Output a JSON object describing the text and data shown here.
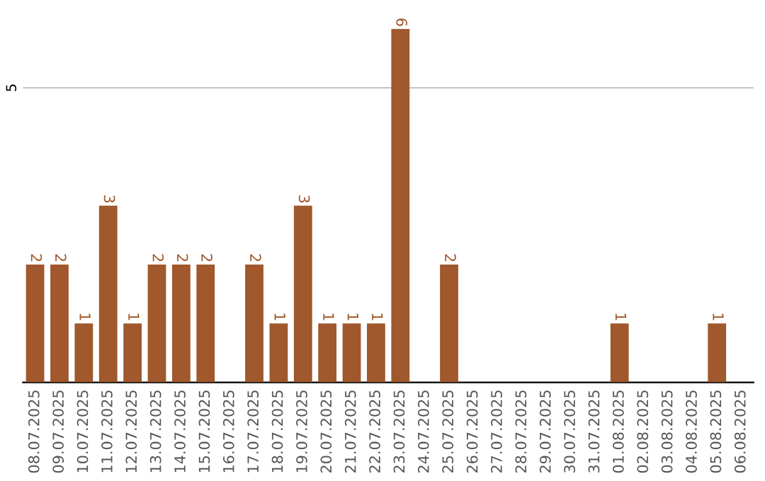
{
  "chart_data": {
    "type": "bar",
    "categories": [
      "08.07.2025",
      "09.07.2025",
      "10.07.2025",
      "11.07.2025",
      "12.07.2025",
      "13.07.2025",
      "14.07.2025",
      "15.07.2025",
      "16.07.2025",
      "17.07.2025",
      "18.07.2025",
      "19.07.2025",
      "20.07.2025",
      "21.07.2025",
      "22.07.2025",
      "23.07.2025",
      "24.07.2025",
      "25.07.2025",
      "26.07.2025",
      "27.07.2025",
      "28.07.2025",
      "29.07.2025",
      "30.07.2025",
      "31.07.2025",
      "01.08.2025",
      "02.08.2025",
      "03.08.2025",
      "04.08.2025",
      "05.08.2025",
      "06.08.2025"
    ],
    "values": [
      2,
      2,
      1,
      3,
      1,
      2,
      2,
      2,
      0,
      2,
      1,
      3,
      1,
      1,
      1,
      6,
      0,
      2,
      0,
      0,
      0,
      0,
      0,
      0,
      1,
      0,
      0,
      0,
      1,
      0
    ],
    "value_labels": [
      "2",
      "2",
      "1",
      "3",
      "1",
      "2",
      "2",
      "2",
      null,
      "2",
      "1",
      "3",
      "1",
      "1",
      "1",
      "6",
      null,
      "2",
      null,
      null,
      null,
      null,
      null,
      null,
      "1",
      null,
      null,
      null,
      "1",
      null
    ],
    "color": "#a0582c",
    "ylim": [
      0,
      6
    ],
    "yticks": [
      5
    ],
    "grid": "y"
  }
}
